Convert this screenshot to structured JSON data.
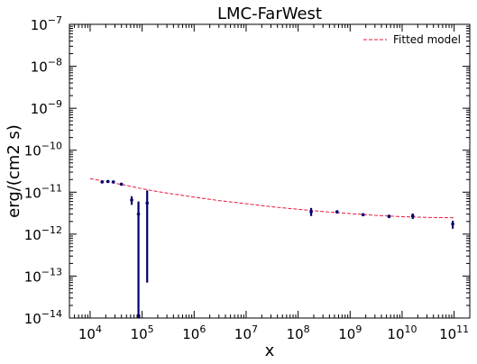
{
  "chart_data": {
    "type": "scatter",
    "title": "LMC-FarWest",
    "xlabel": "x",
    "ylabel": "erg/(cm2 s)",
    "xscale": "log",
    "yscale": "log",
    "xlim": [
      4000,
      200000000000
    ],
    "ylim": [
      1e-14,
      1e-07
    ],
    "x_tick_labels": [
      {
        "base": "10",
        "exp": "4",
        "value": 10000
      },
      {
        "base": "10",
        "exp": "5",
        "value": 100000
      },
      {
        "base": "10",
        "exp": "6",
        "value": 1000000
      },
      {
        "base": "10",
        "exp": "7",
        "value": 10000000
      },
      {
        "base": "10",
        "exp": "8",
        "value": 100000000
      },
      {
        "base": "10",
        "exp": "9",
        "value": 1000000000
      },
      {
        "base": "10",
        "exp": "10",
        "value": 10000000000
      },
      {
        "base": "10",
        "exp": "11",
        "value": 100000000000
      }
    ],
    "y_tick_labels": [
      {
        "base": "10",
        "exp": "−14",
        "value": 1e-14
      },
      {
        "base": "10",
        "exp": "−13",
        "value": 1e-13
      },
      {
        "base": "10",
        "exp": "−12",
        "value": 1e-12
      },
      {
        "base": "10",
        "exp": "−11",
        "value": 1e-11
      },
      {
        "base": "10",
        "exp": "−10",
        "value": 1e-10
      },
      {
        "base": "10",
        "exp": "−9",
        "value": 1e-09
      },
      {
        "base": "10",
        "exp": "−8",
        "value": 1e-08
      },
      {
        "base": "10",
        "exp": "−7",
        "value": 1e-07
      }
    ],
    "legend": {
      "placement": "top-right"
    },
    "series": [
      {
        "name": "Fitted model",
        "kind": "line",
        "style": "dashed",
        "color": "#e8193c",
        "x": [
          10000,
          20000,
          50000,
          100000,
          300000,
          1000000,
          3000000,
          10000000,
          30000000,
          100000000,
          300000000,
          1000000000,
          3000000000,
          10000000000,
          30000000000,
          100000000000
        ],
        "y": [
          2.1e-11,
          1.8e-11,
          1.45e-11,
          1.2e-11,
          9.5e-12,
          7.6e-12,
          6.3e-12,
          5.3e-12,
          4.5e-12,
          3.9e-12,
          3.45e-12,
          3.1e-12,
          2.8e-12,
          2.6e-12,
          2.5e-12,
          2.45e-12
        ]
      },
      {
        "kind": "errorbar",
        "color": "#00006e",
        "points": [
          {
            "x": 17000,
            "y": 1.75e-11,
            "ylo": 1.65e-11,
            "yhi": 1.85e-11
          },
          {
            "x": 22000,
            "y": 1.8e-11,
            "ylo": 1.7e-11,
            "yhi": 1.9e-11
          },
          {
            "x": 28000,
            "y": 1.75e-11,
            "ylo": 1.65e-11,
            "yhi": 1.85e-11
          },
          {
            "x": 40000,
            "y": 1.55e-11,
            "ylo": 1.45e-11,
            "yhi": 1.65e-11
          },
          {
            "x": 63000,
            "y": 6.5e-12,
            "ylo": 5e-12,
            "yhi": 8e-12
          },
          {
            "x": 85000,
            "y": 3e-12,
            "ylo": 1e-14,
            "yhi": 6e-12
          },
          {
            "x": 125000,
            "y": 5.5e-12,
            "ylo": 7e-14,
            "yhi": 1.1e-11
          },
          {
            "x": 178000000,
            "y": 3.4e-12,
            "ylo": 2.7e-12,
            "yhi": 4.2e-12
          },
          {
            "x": 560000000,
            "y": 3.4e-12,
            "ylo": 3.1e-12,
            "yhi": 3.7e-12
          },
          {
            "x": 1780000000,
            "y": 2.9e-12,
            "ylo": 2.7e-12,
            "yhi": 3.1e-12
          },
          {
            "x": 5600000000,
            "y": 2.65e-12,
            "ylo": 2.4e-12,
            "yhi": 2.9e-12
          },
          {
            "x": 16000000000,
            "y": 2.7e-12,
            "ylo": 2.3e-12,
            "yhi": 3.1e-12
          },
          {
            "x": 94000000000,
            "y": 1.75e-12,
            "ylo": 1.35e-12,
            "yhi": 2.1e-12
          }
        ]
      }
    ]
  }
}
